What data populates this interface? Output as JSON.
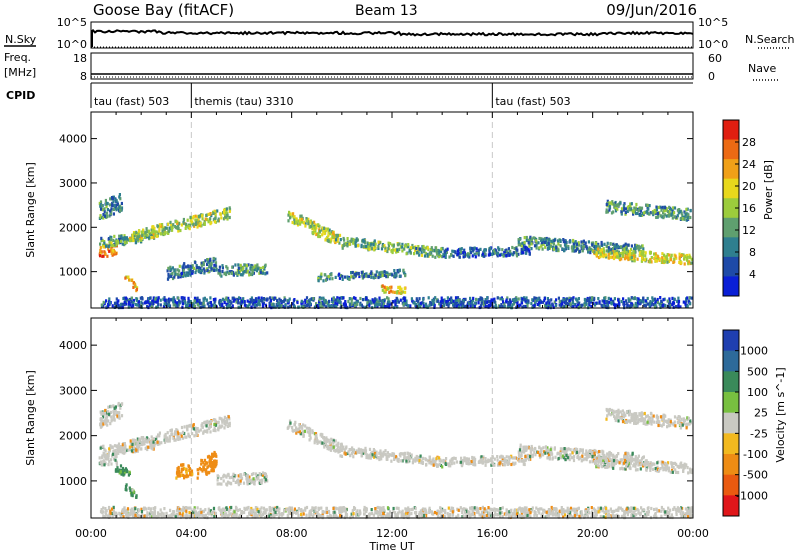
{
  "header": {
    "station": "Goose Bay (fitACF)",
    "beam": "Beam 13",
    "date": "09/Jun/2016"
  },
  "status_panels": {
    "nsky_label": "N.Sky",
    "nsky_ticks": [
      "10^5",
      "10^0"
    ],
    "nsearch_label": "N.Search",
    "nsearch_ticks": [
      "10^5",
      "10^0"
    ],
    "freq_label_top": "Freq.",
    "freq_label_bottom": "[MHz]",
    "freq_ticks": [
      "18",
      "8"
    ],
    "nave_label": "Nave",
    "nave_ticks": [
      "60",
      "0"
    ],
    "cpid_label": "CPID",
    "cpid_segments": [
      {
        "label": "tau (fast) 503",
        "start_hour": 0
      },
      {
        "label": "themis (tau) 3310",
        "start_hour": 4
      },
      {
        "label": "tau (fast) 503",
        "start_hour": 16
      }
    ]
  },
  "power_panel": {
    "ylabel": "Slant Range [km]",
    "yticks": [
      "1000",
      "2000",
      "3000",
      "4000"
    ],
    "colorbar_label": "Power [dB]",
    "colorbar_ticks": [
      "4",
      "8",
      "12",
      "16",
      "20",
      "24",
      "28"
    ]
  },
  "velocity_panel": {
    "ylabel": "Slant Range [km]",
    "yticks": [
      "1000",
      "2000",
      "3000",
      "4000"
    ],
    "colorbar_label": "Velocity [m s^-1]",
    "colorbar_ticks": [
      "1000",
      "500",
      "100",
      "25",
      "-25",
      "-100",
      "-500",
      "-1000"
    ]
  },
  "time_axis": {
    "xlabel": "Time UT",
    "ticks": [
      "00:00",
      "04:00",
      "08:00",
      "12:00",
      "16:00",
      "20:00",
      "00:00"
    ]
  },
  "colors": {
    "power_scale": [
      "#0a1fd6",
      "#1e4aa8",
      "#2f7f8f",
      "#5f9f6f",
      "#9ccc3c",
      "#e8d81c",
      "#f0a018",
      "#ec6a14",
      "#e01e10"
    ],
    "velocity_scale": [
      "#1f3fb0",
      "#2d6a9a",
      "#3a8a5a",
      "#78c040",
      "#c9c9c2",
      "#f2b91f",
      "#ee8c14",
      "#ea5a10",
      "#e0161a"
    ]
  },
  "chart_data": [
    {
      "type": "heatmap",
      "title": "Power",
      "xlabel": "Time UT",
      "ylabel": "Slant Range [km]",
      "x_range_hours": [
        0,
        24
      ],
      "ylim_km": [
        180,
        4600
      ],
      "color_range_db": [
        0,
        32
      ],
      "scatter_bands": [
        {
          "t_start": 0.3,
          "t_end": 1.0,
          "range_start_km": 1500,
          "range_end_km": 1500,
          "thickness_km": 120,
          "value_db": 26
        },
        {
          "t_start": 0.3,
          "t_end": 2.5,
          "range_start_km": 1680,
          "range_end_km": 1850,
          "thickness_km": 110,
          "value_db": 12
        },
        {
          "t_start": 1.5,
          "t_end": 5.5,
          "range_start_km": 1800,
          "range_end_km": 2350,
          "thickness_km": 130,
          "value_db": 16
        },
        {
          "t_start": 0.3,
          "t_end": 1.2,
          "range_start_km": 2400,
          "range_end_km": 2600,
          "thickness_km": 200,
          "value_db": 9
        },
        {
          "t_start": 1.3,
          "t_end": 1.8,
          "range_start_km": 950,
          "range_end_km": 650,
          "thickness_km": 80,
          "value_db": 21
        },
        {
          "t_start": 3.0,
          "t_end": 5.0,
          "range_start_km": 1000,
          "range_end_km": 1200,
          "thickness_km": 150,
          "value_db": 9
        },
        {
          "t_start": 5.0,
          "t_end": 7.0,
          "range_start_km": 1050,
          "range_end_km": 1100,
          "thickness_km": 120,
          "value_db": 11
        },
        {
          "t_start": 7.8,
          "t_end": 10.0,
          "range_start_km": 2300,
          "range_end_km": 1700,
          "thickness_km": 140,
          "value_db": 16
        },
        {
          "t_start": 10.0,
          "t_end": 14.0,
          "range_start_km": 1700,
          "range_end_km": 1450,
          "thickness_km": 110,
          "value_db": 13
        },
        {
          "t_start": 14.0,
          "t_end": 17.5,
          "range_start_km": 1450,
          "range_end_km": 1500,
          "thickness_km": 100,
          "value_db": 7
        },
        {
          "t_start": 17.0,
          "t_end": 22.0,
          "range_start_km": 1700,
          "range_end_km": 1500,
          "thickness_km": 130,
          "value_db": 10
        },
        {
          "t_start": 20.0,
          "t_end": 24.0,
          "range_start_km": 1450,
          "range_end_km": 1300,
          "thickness_km": 110,
          "value_db": 19
        },
        {
          "t_start": 20.5,
          "t_end": 24.0,
          "range_start_km": 2500,
          "range_end_km": 2300,
          "thickness_km": 130,
          "value_db": 11
        },
        {
          "t_start": 9.0,
          "t_end": 12.5,
          "range_start_km": 900,
          "range_end_km": 1000,
          "thickness_km": 80,
          "value_db": 9
        },
        {
          "t_start": 11.5,
          "t_end": 12.6,
          "range_start_km": 650,
          "range_end_km": 600,
          "thickness_km": 70,
          "value_db": 21
        },
        {
          "t_start": 0.3,
          "t_end": 24.0,
          "range_start_km": 300,
          "range_end_km": 300,
          "thickness_km": 150,
          "value_db": 6
        }
      ]
    },
    {
      "type": "heatmap",
      "title": "Velocity",
      "xlabel": "Time UT",
      "ylabel": "Slant Range [km]",
      "x_range_hours": [
        0,
        24
      ],
      "ylim_km": [
        180,
        4600
      ],
      "color_range_ms": [
        -1000,
        1000
      ],
      "scatter_bands": [
        {
          "t_start": 0.3,
          "t_end": 1.0,
          "range_start_km": 1500,
          "range_end_km": 1500,
          "thickness_km": 120,
          "value_ms": 0
        },
        {
          "t_start": 0.3,
          "t_end": 2.5,
          "range_start_km": 1680,
          "range_end_km": 1850,
          "thickness_km": 110,
          "value_ms": 0
        },
        {
          "t_start": 1.5,
          "t_end": 5.5,
          "range_start_km": 1800,
          "range_end_km": 2350,
          "thickness_km": 130,
          "value_ms": 0
        },
        {
          "t_start": 0.3,
          "t_end": 1.2,
          "range_start_km": 2400,
          "range_end_km": 2600,
          "thickness_km": 200,
          "value_ms": 0
        },
        {
          "t_start": 1.3,
          "t_end": 1.8,
          "range_start_km": 950,
          "range_end_km": 650,
          "thickness_km": 80,
          "value_ms": 120
        },
        {
          "t_start": 0.9,
          "t_end": 1.6,
          "range_start_km": 1350,
          "range_end_km": 1150,
          "thickness_km": 90,
          "value_ms": 150
        },
        {
          "t_start": 3.3,
          "t_end": 4.0,
          "range_start_km": 1200,
          "range_end_km": 1300,
          "thickness_km": 150,
          "value_ms": -180
        },
        {
          "t_start": 4.2,
          "t_end": 5.0,
          "range_start_km": 1250,
          "range_end_km": 1500,
          "thickness_km": 200,
          "value_ms": -350
        },
        {
          "t_start": 5.0,
          "t_end": 7.0,
          "range_start_km": 1050,
          "range_end_km": 1100,
          "thickness_km": 120,
          "value_ms": 0
        },
        {
          "t_start": 7.8,
          "t_end": 10.0,
          "range_start_km": 2300,
          "range_end_km": 1700,
          "thickness_km": 140,
          "value_ms": 0
        },
        {
          "t_start": 10.0,
          "t_end": 14.0,
          "range_start_km": 1700,
          "range_end_km": 1450,
          "thickness_km": 110,
          "value_ms": 0
        },
        {
          "t_start": 14.0,
          "t_end": 17.5,
          "range_start_km": 1450,
          "range_end_km": 1500,
          "thickness_km": 100,
          "value_ms": 0
        },
        {
          "t_start": 17.0,
          "t_end": 22.0,
          "range_start_km": 1700,
          "range_end_km": 1500,
          "thickness_km": 130,
          "value_ms": 0
        },
        {
          "t_start": 20.0,
          "t_end": 24.0,
          "range_start_km": 1450,
          "range_end_km": 1300,
          "thickness_km": 110,
          "value_ms": 0
        },
        {
          "t_start": 20.5,
          "t_end": 24.0,
          "range_start_km": 2500,
          "range_end_km": 2300,
          "thickness_km": 130,
          "value_ms": 0
        },
        {
          "t_start": 0.3,
          "t_end": 24.0,
          "range_start_km": 300,
          "range_end_km": 300,
          "thickness_km": 150,
          "value_ms": 0
        }
      ]
    }
  ]
}
